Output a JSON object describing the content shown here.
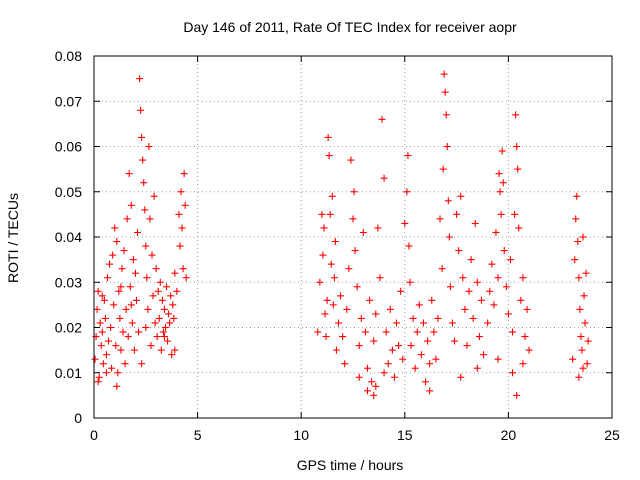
{
  "chart_data": {
    "type": "scatter",
    "title": "Day 146 of 2011, Rate Of TEC Index for receiver aopr",
    "xlabel": "GPS time / hours",
    "ylabel": "ROTI / TECUs",
    "xlim": [
      0,
      25
    ],
    "ylim": [
      0,
      0.08
    ],
    "x_ticks": [
      0,
      5,
      10,
      15,
      20,
      25
    ],
    "y_ticks": [
      0,
      0.01,
      0.02,
      0.03,
      0.04,
      0.05,
      0.06,
      0.07,
      0.08
    ],
    "x_tick_labels": [
      "0",
      "5",
      "10",
      "15",
      "20",
      "25"
    ],
    "y_tick_labels": [
      "0",
      "0.01",
      "0.02",
      "0.03",
      "0.04",
      "0.05",
      "0.06",
      "0.07",
      "0.08"
    ],
    "grid": true,
    "marker": "+",
    "color": "#ff0000",
    "series": [
      {
        "name": "ROTI",
        "points": [
          [
            0.05,
            0.013
          ],
          [
            0.1,
            0.018
          ],
          [
            0.15,
            0.024
          ],
          [
            0.2,
            0.028
          ],
          [
            0.25,
            0.009
          ],
          [
            0.3,
            0.021
          ],
          [
            0.35,
            0.016
          ],
          [
            0.4,
            0.019
          ],
          [
            0.45,
            0.012
          ],
          [
            0.5,
            0.026
          ],
          [
            0.55,
            0.022
          ],
          [
            0.6,
            0.014
          ],
          [
            0.65,
            0.031
          ],
          [
            0.7,
            0.017
          ],
          [
            0.75,
            0.034
          ],
          [
            0.8,
            0.02
          ],
          [
            0.85,
            0.011
          ],
          [
            0.9,
            0.036
          ],
          [
            0.95,
            0.025
          ],
          [
            1.0,
            0.042
          ],
          [
            1.05,
            0.016
          ],
          [
            1.1,
            0.039
          ],
          [
            1.15,
            0.01
          ],
          [
            1.2,
            0.028
          ],
          [
            1.25,
            0.022
          ],
          [
            1.3,
            0.015
          ],
          [
            1.35,
            0.033
          ],
          [
            1.4,
            0.019
          ],
          [
            1.45,
            0.037
          ],
          [
            1.5,
            0.012
          ],
          [
            1.55,
            0.024
          ],
          [
            1.6,
            0.044
          ],
          [
            1.65,
            0.018
          ],
          [
            1.7,
            0.054
          ],
          [
            1.75,
            0.029
          ],
          [
            1.8,
            0.047
          ],
          [
            1.85,
            0.021
          ],
          [
            1.9,
            0.035
          ],
          [
            1.95,
            0.015
          ],
          [
            2.0,
            0.032
          ],
          [
            2.05,
            0.026
          ],
          [
            2.1,
            0.041
          ],
          [
            2.15,
            0.019
          ],
          [
            2.2,
            0.075
          ],
          [
            2.25,
            0.068
          ],
          [
            2.3,
            0.062
          ],
          [
            2.35,
            0.057
          ],
          [
            2.4,
            0.052
          ],
          [
            2.45,
            0.046
          ],
          [
            2.5,
            0.038
          ],
          [
            2.55,
            0.031
          ],
          [
            2.6,
            0.024
          ],
          [
            2.65,
            0.06
          ],
          [
            2.7,
            0.044
          ],
          [
            2.75,
            0.016
          ],
          [
            2.8,
            0.036
          ],
          [
            2.85,
            0.027
          ],
          [
            2.9,
            0.049
          ],
          [
            2.95,
            0.021
          ],
          [
            3.0,
            0.033
          ],
          [
            3.05,
            0.018
          ],
          [
            3.1,
            0.028
          ],
          [
            3.15,
            0.022
          ],
          [
            3.2,
            0.03
          ],
          [
            3.25,
            0.015
          ],
          [
            3.3,
            0.026
          ],
          [
            3.35,
            0.019
          ],
          [
            3.4,
            0.024
          ],
          [
            3.45,
            0.02
          ],
          [
            3.5,
            0.029
          ],
          [
            3.55,
            0.017
          ],
          [
            3.6,
            0.023
          ],
          [
            3.65,
            0.021
          ],
          [
            3.7,
            0.027
          ],
          [
            3.75,
            0.014
          ],
          [
            3.8,
            0.025
          ],
          [
            3.85,
            0.022
          ],
          [
            3.9,
            0.032
          ],
          [
            4.0,
            0.028
          ],
          [
            4.1,
            0.045
          ],
          [
            4.15,
            0.038
          ],
          [
            4.2,
            0.05
          ],
          [
            4.25,
            0.042
          ],
          [
            4.3,
            0.033
          ],
          [
            4.35,
            0.054
          ],
          [
            4.4,
            0.047
          ],
          [
            4.45,
            0.031
          ],
          [
            0.2,
            0.008
          ],
          [
            0.6,
            0.01
          ],
          [
            1.1,
            0.007
          ],
          [
            1.3,
            0.029
          ],
          [
            2.3,
            0.012
          ],
          [
            2.5,
            0.02
          ],
          [
            3.4,
            0.018
          ],
          [
            3.9,
            0.015
          ],
          [
            0.4,
            0.027
          ],
          [
            1.8,
            0.025
          ],
          [
            10.8,
            0.019
          ],
          [
            10.9,
            0.03
          ],
          [
            11.0,
            0.045
          ],
          [
            11.05,
            0.036
          ],
          [
            11.1,
            0.042
          ],
          [
            11.15,
            0.023
          ],
          [
            11.2,
            0.018
          ],
          [
            11.25,
            0.026
          ],
          [
            11.3,
            0.062
          ],
          [
            11.35,
            0.058
          ],
          [
            11.4,
            0.045
          ],
          [
            11.45,
            0.034
          ],
          [
            11.5,
            0.049
          ],
          [
            11.55,
            0.025
          ],
          [
            11.6,
            0.031
          ],
          [
            11.65,
            0.039
          ],
          [
            11.7,
            0.015
          ],
          [
            11.8,
            0.021
          ],
          [
            11.9,
            0.027
          ],
          [
            12.0,
            0.018
          ],
          [
            12.1,
            0.012
          ],
          [
            12.2,
            0.024
          ],
          [
            12.3,
            0.033
          ],
          [
            12.4,
            0.057
          ],
          [
            12.5,
            0.044
          ],
          [
            12.55,
            0.05
          ],
          [
            12.6,
            0.037
          ],
          [
            12.7,
            0.029
          ],
          [
            12.8,
            0.016
          ],
          [
            12.9,
            0.022
          ],
          [
            13.0,
            0.041
          ],
          [
            13.1,
            0.019
          ],
          [
            13.2,
            0.011
          ],
          [
            13.3,
            0.026
          ],
          [
            13.4,
            0.008
          ],
          [
            13.5,
            0.017
          ],
          [
            13.6,
            0.023
          ],
          [
            13.7,
            0.042
          ],
          [
            13.8,
            0.031
          ],
          [
            13.9,
            0.066
          ],
          [
            14.0,
            0.053
          ],
          [
            14.1,
            0.019
          ],
          [
            14.2,
            0.012
          ],
          [
            14.3,
            0.024
          ],
          [
            14.4,
            0.015
          ],
          [
            14.5,
            0.009
          ],
          [
            14.6,
            0.021
          ],
          [
            14.7,
            0.016
          ],
          [
            14.8,
            0.028
          ],
          [
            14.9,
            0.013
          ],
          [
            13.5,
            0.005
          ],
          [
            13.6,
            0.007
          ],
          [
            13.2,
            0.006
          ],
          [
            14.0,
            0.01
          ],
          [
            12.8,
            0.009
          ],
          [
            15.0,
            0.043
          ],
          [
            15.1,
            0.05
          ],
          [
            15.15,
            0.058
          ],
          [
            15.2,
            0.038
          ],
          [
            15.25,
            0.03
          ],
          [
            15.3,
            0.016
          ],
          [
            15.4,
            0.022
          ],
          [
            15.5,
            0.011
          ],
          [
            15.6,
            0.019
          ],
          [
            15.7,
            0.025
          ],
          [
            15.8,
            0.014
          ],
          [
            15.9,
            0.021
          ],
          [
            16.0,
            0.008
          ],
          [
            16.1,
            0.017
          ],
          [
            16.2,
            0.012
          ],
          [
            16.3,
            0.026
          ],
          [
            16.4,
            0.019
          ],
          [
            16.5,
            0.013
          ],
          [
            16.6,
            0.022
          ],
          [
            16.7,
            0.044
          ],
          [
            16.8,
            0.033
          ],
          [
            16.85,
            0.055
          ],
          [
            16.9,
            0.076
          ],
          [
            16.95,
            0.072
          ],
          [
            17.0,
            0.067
          ],
          [
            17.05,
            0.06
          ],
          [
            17.1,
            0.048
          ],
          [
            17.15,
            0.04
          ],
          [
            17.2,
            0.029
          ],
          [
            17.3,
            0.021
          ],
          [
            17.4,
            0.017
          ],
          [
            17.5,
            0.045
          ],
          [
            17.6,
            0.037
          ],
          [
            17.7,
            0.049
          ],
          [
            17.8,
            0.031
          ],
          [
            17.9,
            0.024
          ],
          [
            18.0,
            0.016
          ],
          [
            18.1,
            0.028
          ],
          [
            18.2,
            0.035
          ],
          [
            18.3,
            0.022
          ],
          [
            18.4,
            0.043
          ],
          [
            18.5,
            0.03
          ],
          [
            18.6,
            0.018
          ],
          [
            18.7,
            0.026
          ],
          [
            18.8,
            0.014
          ],
          [
            16.2,
            0.006
          ],
          [
            17.7,
            0.009
          ],
          [
            18.5,
            0.011
          ],
          [
            19.0,
            0.021
          ],
          [
            19.1,
            0.028
          ],
          [
            19.2,
            0.034
          ],
          [
            19.3,
            0.025
          ],
          [
            19.4,
            0.041
          ],
          [
            19.5,
            0.031
          ],
          [
            19.55,
            0.054
          ],
          [
            19.6,
            0.05
          ],
          [
            19.65,
            0.045
          ],
          [
            19.7,
            0.059
          ],
          [
            19.75,
            0.052
          ],
          [
            19.8,
            0.037
          ],
          [
            19.9,
            0.029
          ],
          [
            20.0,
            0.023
          ],
          [
            20.1,
            0.035
          ],
          [
            20.2,
            0.019
          ],
          [
            20.3,
            0.045
          ],
          [
            20.35,
            0.067
          ],
          [
            20.4,
            0.06
          ],
          [
            20.45,
            0.055
          ],
          [
            20.5,
            0.042
          ],
          [
            20.6,
            0.026
          ],
          [
            20.7,
            0.031
          ],
          [
            20.8,
            0.018
          ],
          [
            20.9,
            0.024
          ],
          [
            21.0,
            0.015
          ],
          [
            20.2,
            0.01
          ],
          [
            20.4,
            0.005
          ],
          [
            19.5,
            0.013
          ],
          [
            20.7,
            0.012
          ],
          [
            23.1,
            0.013
          ],
          [
            23.2,
            0.035
          ],
          [
            23.25,
            0.044
          ],
          [
            23.3,
            0.049
          ],
          [
            23.35,
            0.039
          ],
          [
            23.4,
            0.031
          ],
          [
            23.45,
            0.024
          ],
          [
            23.5,
            0.018
          ],
          [
            23.55,
            0.015
          ],
          [
            23.6,
            0.04
          ],
          [
            23.65,
            0.027
          ],
          [
            23.7,
            0.021
          ],
          [
            23.75,
            0.032
          ],
          [
            23.8,
            0.012
          ],
          [
            23.85,
            0.017
          ],
          [
            23.4,
            0.009
          ],
          [
            23.6,
            0.011
          ]
        ]
      }
    ]
  }
}
